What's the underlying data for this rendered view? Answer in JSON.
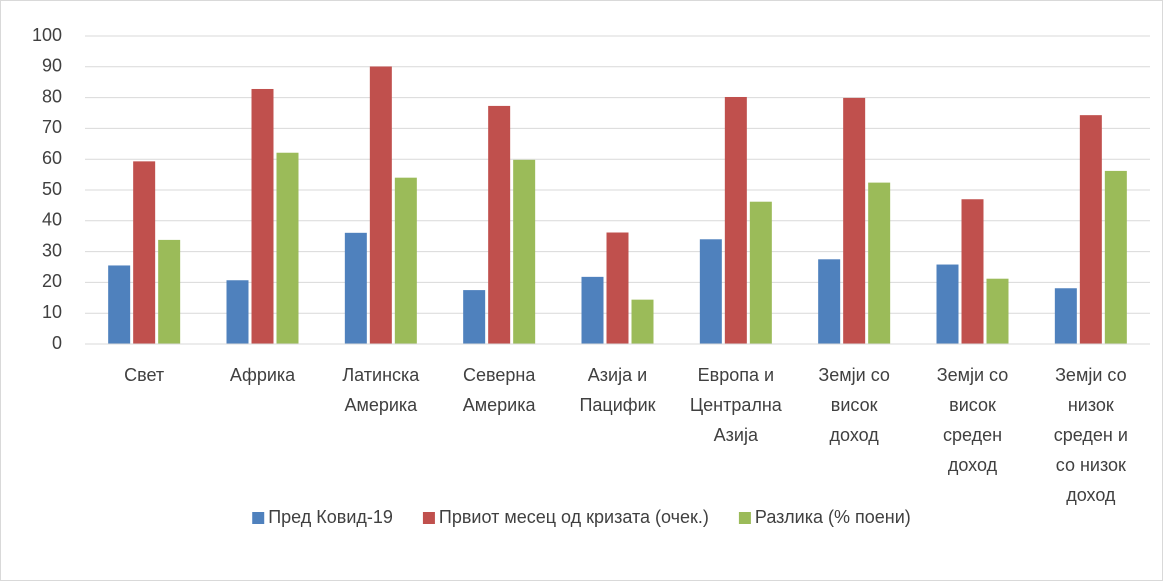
{
  "chart_data": {
    "type": "bar",
    "categories": [
      "Свет",
      "Африка",
      "Латинска Америка",
      "Северна Америка",
      "Азија и Пацифик",
      "Европа и Централна Азија",
      "Земји со висок доход",
      "Земји со висок среден доход",
      "Земји со низок среден и со низок доход"
    ],
    "series": [
      {
        "name": "Пред Ковид-19",
        "color": "#4f81bd",
        "values": [
          25.5,
          20.7,
          36.1,
          17.5,
          21.8,
          34.0,
          27.5,
          25.8,
          18.1
        ]
      },
      {
        "name": "Првиот месец од кризата (очек.)",
        "color": "#c0504d",
        "values": [
          59.3,
          82.8,
          90.1,
          77.3,
          36.2,
          80.2,
          79.9,
          47.0,
          74.3
        ]
      },
      {
        "name": "Разлика (% поени)",
        "color": "#9bbb59",
        "values": [
          33.8,
          62.1,
          54.0,
          59.8,
          14.4,
          46.2,
          52.4,
          21.2,
          56.2
        ]
      }
    ],
    "ylim": [
      0,
      100
    ],
    "yticks": [
      0,
      10,
      20,
      30,
      40,
      50,
      60,
      70,
      80,
      90,
      100
    ],
    "grid": true,
    "legend": "bottom"
  }
}
